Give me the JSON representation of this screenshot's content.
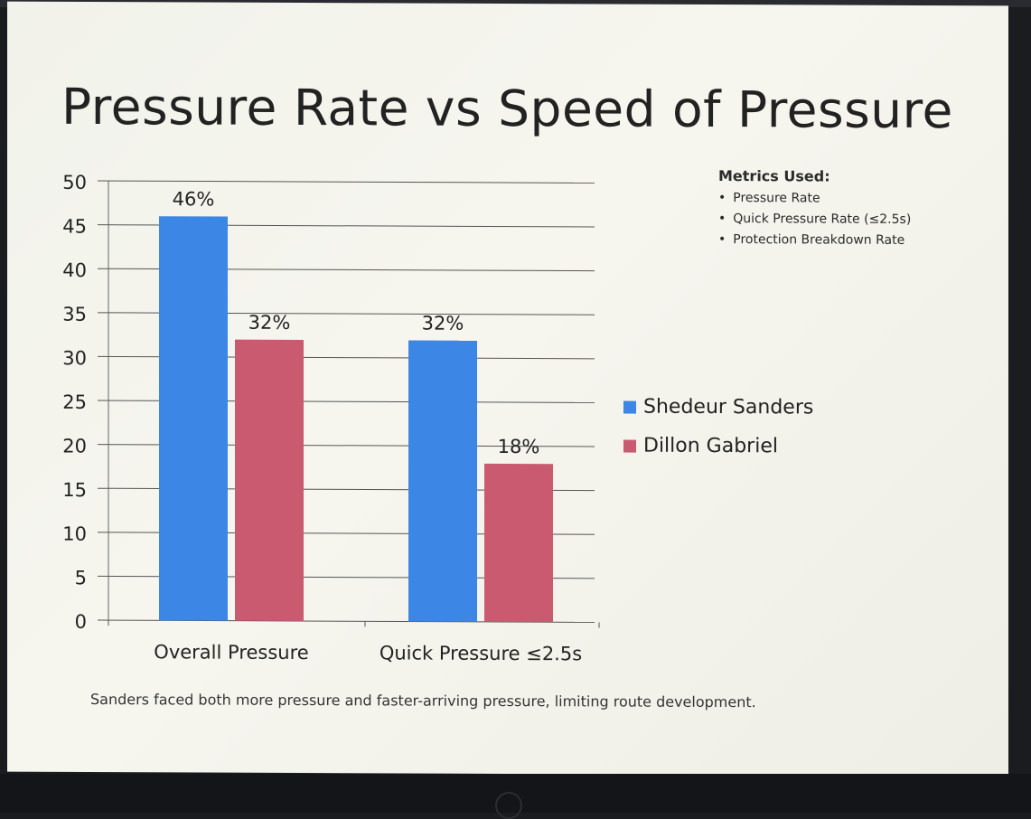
{
  "slide": {
    "title": "Pressure Rate vs Speed of Pressure",
    "footnote": "Sanders faced both more pressure and faster-arriving pressure, limiting route development."
  },
  "metrics": {
    "heading": "Metrics Used:",
    "items": [
      "Pressure Rate",
      "Quick Pressure Rate (≤2.5s)",
      "Protection Breakdown Rate"
    ]
  },
  "colors": {
    "series_1": "#3c86e6",
    "series_2": "#c95a70",
    "gridline": "#555555"
  },
  "chart_data": {
    "type": "bar",
    "title": "Pressure Rate vs Speed of Pressure",
    "categories": [
      "Overall Pressure",
      "Quick Pressure ≤2.5s"
    ],
    "series": [
      {
        "name": "Shedeur Sanders",
        "values": [
          46,
          32
        ],
        "labels": [
          "46%",
          "32%"
        ]
      },
      {
        "name": "Dillon Gabriel",
        "values": [
          32,
          18
        ],
        "labels": [
          "32%",
          "18%"
        ]
      }
    ],
    "xlabel": "",
    "ylabel": "",
    "ylim": [
      0,
      50
    ],
    "yticks": [
      "0",
      "5",
      "10",
      "15",
      "20",
      "25",
      "30",
      "35",
      "40",
      "45",
      "50"
    ],
    "grid": true,
    "legend": "right"
  }
}
